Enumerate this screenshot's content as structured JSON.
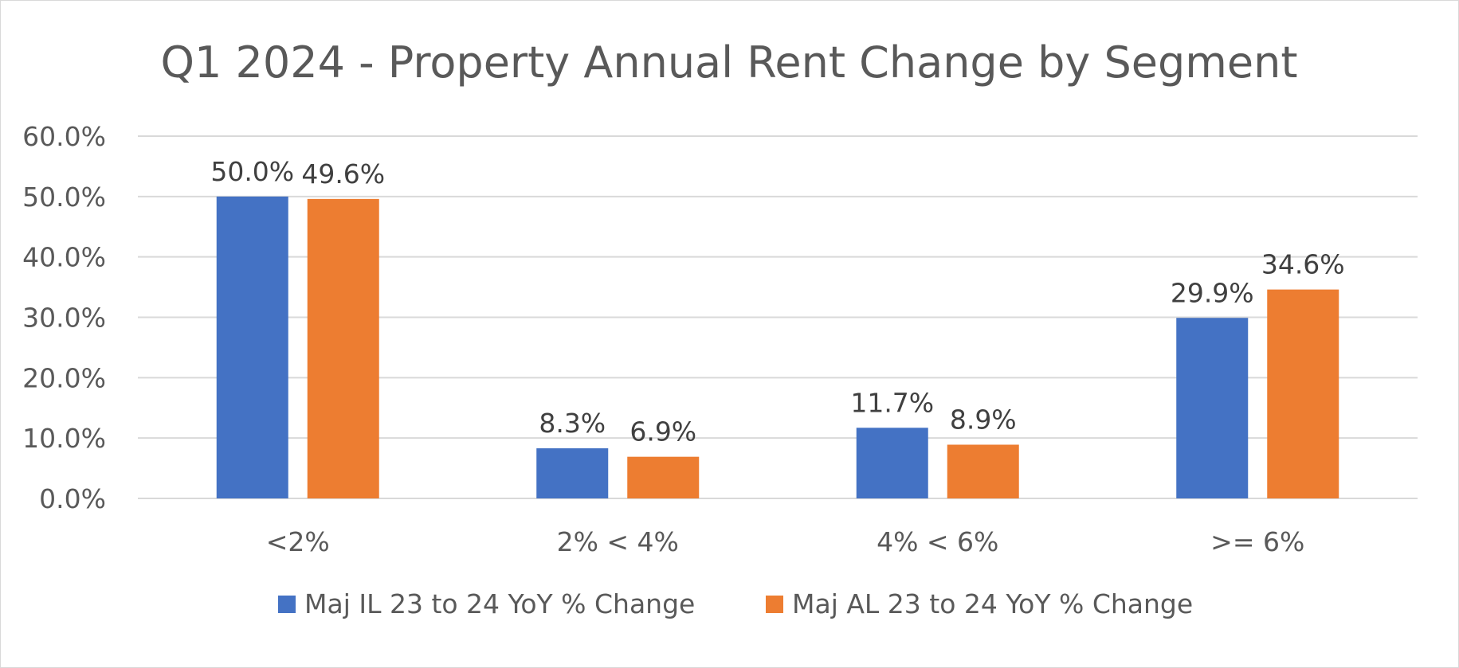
{
  "chart_data": {
    "type": "bar",
    "title": "Q1 2024 - Property Annual Rent Change by Segment",
    "xlabel": "",
    "ylabel": "",
    "categories": [
      "<2%",
      "2% < 4%",
      "4% < 6%",
      ">= 6%"
    ],
    "series": [
      {
        "name": "Maj IL 23 to 24 YoY % Change",
        "color": "#4472C4",
        "values": [
          50.0,
          8.3,
          11.7,
          29.9
        ],
        "labels": [
          "50.0%",
          "8.3%",
          "11.7%",
          "29.9%"
        ]
      },
      {
        "name": "Maj AL 23 to 24 YoY % Change",
        "color": "#ED7D31",
        "values": [
          49.6,
          6.9,
          8.9,
          34.6
        ],
        "labels": [
          "49.6%",
          "6.9%",
          "8.9%",
          "34.6%"
        ]
      }
    ],
    "ylim": [
      0,
      60
    ],
    "yticks": [
      0,
      10,
      20,
      30,
      40,
      50,
      60
    ],
    "ytick_labels": [
      "0.0%",
      "10.0%",
      "20.0%",
      "30.0%",
      "40.0%",
      "50.0%",
      "60.0%"
    ],
    "grid": true,
    "legend_position": "bottom"
  }
}
